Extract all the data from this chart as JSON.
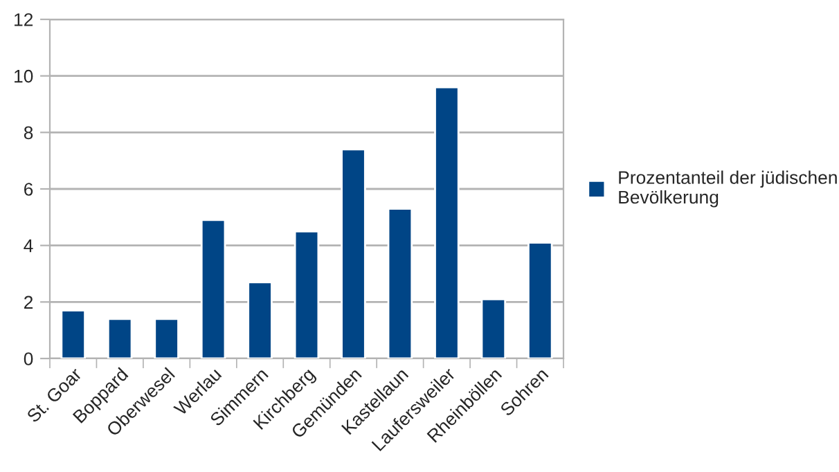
{
  "chart_data": {
    "type": "bar",
    "categories": [
      "St. Goar",
      "Boppard",
      "Oberwesel",
      "Werlau",
      "Simmern",
      "Kirchberg",
      "Gemünden",
      "Kastellaun",
      "Laufersweiler",
      "Rheinböllen",
      "Sohren"
    ],
    "series": [
      {
        "name": "Prozentanteil der jüdischen Bevölkerung",
        "color": "#004586",
        "values": [
          1.7,
          1.4,
          1.4,
          4.9,
          2.7,
          4.5,
          7.4,
          5.3,
          9.6,
          2.1,
          4.1
        ]
      }
    ],
    "ylim": [
      0,
      12
    ],
    "yticks": [
      0,
      2,
      4,
      6,
      8,
      10,
      12
    ],
    "grid": "y",
    "legend": "right"
  }
}
